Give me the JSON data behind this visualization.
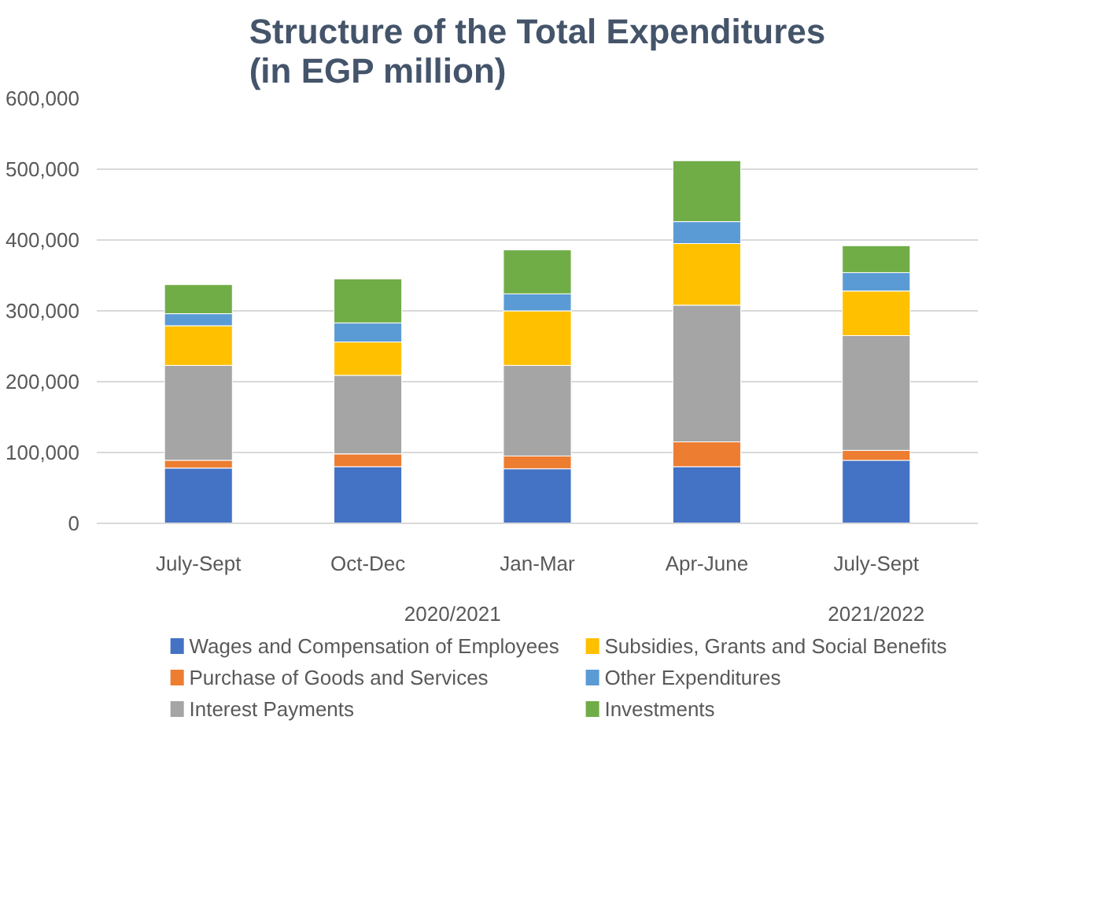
{
  "chart_data": {
    "type": "bar",
    "title": "Structure of the Total Expenditures\n(in EGP million)",
    "categories": [
      "July-Sept",
      "Oct-Dec",
      "Jan-Mar",
      "Apr-June",
      "July-Sept"
    ],
    "annotations": [
      "2020/2021",
      "2021/2022"
    ],
    "stacked": true,
    "series": [
      {
        "name": "Wages and Compensation of Employees",
        "color": "#4472c4",
        "values": [
          78000,
          80000,
          77000,
          80000,
          89000
        ]
      },
      {
        "name": "Purchase of Goods and Services",
        "color": "#ed7d31",
        "values": [
          11000,
          18000,
          18000,
          35000,
          14000
        ]
      },
      {
        "name": "Interest Payments",
        "color": "#a5a5a5",
        "values": [
          134000,
          111000,
          128000,
          193000,
          162000
        ]
      },
      {
        "name": "Subsidies, Grants and Social Benefits",
        "color": "#ffc000",
        "values": [
          56000,
          47000,
          77000,
          87000,
          63000
        ]
      },
      {
        "name": "Other Expenditures",
        "color": "#5b9bd5",
        "values": [
          17000,
          27000,
          24000,
          31000,
          26000
        ]
      },
      {
        "name": "Investments",
        "color": "#70ad47",
        "values": [
          41000,
          62000,
          62000,
          86000,
          38000
        ]
      }
    ],
    "ylim": [
      0,
      600000
    ],
    "yticks": [
      0,
      {
        "value": 100000,
        "label": "100,000"
      },
      {
        "value": 200000,
        "label": "200,000"
      },
      {
        "value": 300000,
        "label": "300,000"
      },
      {
        "value": 400000,
        "label": "400,000"
      },
      {
        "value": 500000,
        "label": "500,000"
      },
      {
        "value": 600000,
        "label": "600,000"
      }
    ],
    "grid": "y",
    "legend": "bottom"
  }
}
